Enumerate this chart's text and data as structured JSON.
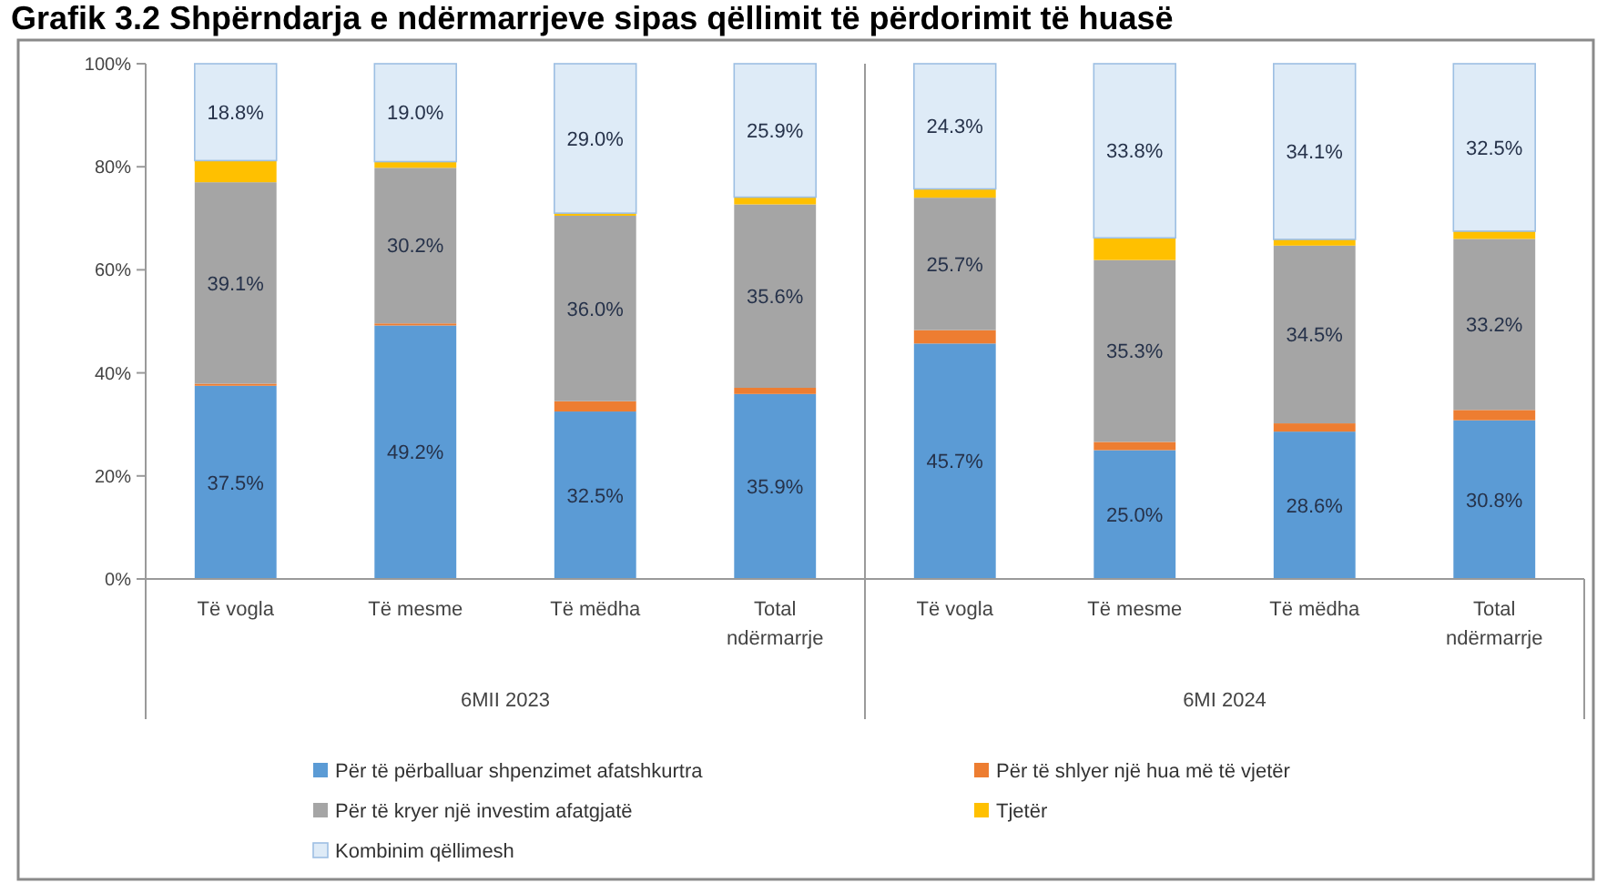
{
  "chart_data": {
    "type": "bar",
    "stacked": true,
    "title": "Grafik 3.2 Shpërndarja e ndërmarrjeve sipas qëllimit të përdorimit të huasë",
    "categories": [
      "Të vogla",
      "Të mesme",
      "Të mëdha",
      "Total ndërmarrje",
      "Të vogla",
      "Të mesme",
      "Të mëdha",
      "Total ndërmarrje"
    ],
    "series": [
      {
        "name": "Për të përballuar shpenzimet afatshkurtra",
        "color": "#5b9bd5",
        "values": [
          37.5,
          49.2,
          32.5,
          35.9,
          45.7,
          25.0,
          28.6,
          30.8
        ],
        "value_labels": [
          "37.5%",
          "49.2%",
          "32.5%",
          "35.9%",
          "45.7%",
          "25.0%",
          "28.6%",
          "30.8%"
        ]
      },
      {
        "name": "Për të shlyer një hua më të vjetër",
        "color": "#ed7d31",
        "values": [
          0.4,
          0.4,
          2.0,
          1.2,
          2.6,
          1.6,
          1.6,
          2.0
        ]
      },
      {
        "name": "Për të kryer një investim afatgjatë",
        "color": "#a5a5a5",
        "values": [
          39.1,
          30.2,
          36.0,
          35.6,
          25.7,
          35.3,
          34.5,
          33.2
        ],
        "value_labels": [
          "39.1%",
          "30.2%",
          "36.0%",
          "35.6%",
          "25.7%",
          "35.3%",
          "34.5%",
          "33.2%"
        ]
      },
      {
        "name": "Tjetër",
        "color": "#ffc000",
        "values": [
          4.2,
          1.2,
          0.5,
          1.4,
          1.7,
          4.3,
          1.2,
          1.5
        ]
      },
      {
        "name": "Kombinim qëllimesh",
        "color": "#deebf7",
        "values": [
          18.8,
          19.0,
          29.0,
          25.9,
          24.3,
          33.8,
          34.1,
          32.5
        ],
        "value_labels": [
          "18.8%",
          "19.0%",
          "29.0%",
          "25.9%",
          "24.3%",
          "33.8%",
          "34.1%",
          "32.5%"
        ]
      }
    ],
    "ylim": [
      0,
      100
    ],
    "yticks": [
      {
        "value": 0,
        "label": "0%"
      },
      {
        "value": 20,
        "label": "20%"
      },
      {
        "value": 40,
        "label": "40%"
      },
      {
        "value": 60,
        "label": "60%"
      },
      {
        "value": 80,
        "label": "80%"
      },
      {
        "value": 100,
        "label": "100%"
      }
    ],
    "annotations": [
      "6MII 2023",
      "6MI 2024"
    ],
    "legend": "bottom"
  }
}
